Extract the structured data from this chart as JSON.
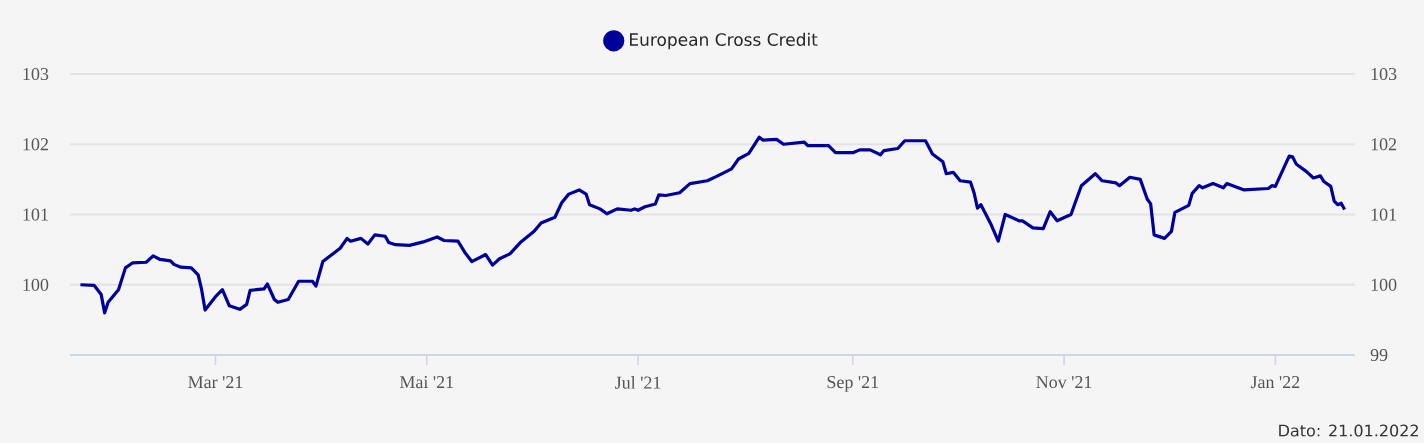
{
  "chart_data": {
    "type": "line",
    "legend": "top",
    "grid": "y",
    "annotations": [
      "Dato: 21.01.2022"
    ],
    "xlim": [
      "2021-01-18",
      "2022-01-24"
    ],
    "xticks": [
      {
        "value": "2021-03-01",
        "label": "Mar '21"
      },
      {
        "value": "2021-05-01",
        "label": "Mai '21"
      },
      {
        "value": "2021-07-01",
        "label": "Jul '21"
      },
      {
        "value": "2021-09-01",
        "label": "Sep '21"
      },
      {
        "value": "2021-11-01",
        "label": "Nov '21"
      },
      {
        "value": "2022-01-01",
        "label": "Jan '22"
      }
    ],
    "ylim": [
      99,
      103
    ],
    "yticks": [
      100,
      101,
      102,
      103
    ],
    "y2lim": [
      99,
      103
    ],
    "y2ticks": [
      99,
      100,
      101,
      102,
      103
    ],
    "series": [
      {
        "name": "European Cross Credit",
        "color": "#00009b",
        "x": [
          "2021-01-21",
          "2021-01-25",
          "2021-01-27",
          "2021-01-28",
          "2021-01-29",
          "2021-02-01",
          "2021-02-03",
          "2021-02-05",
          "2021-02-09",
          "2021-02-11",
          "2021-02-13",
          "2021-02-16",
          "2021-02-17",
          "2021-02-19",
          "2021-02-22",
          "2021-02-24",
          "2021-02-25",
          "2021-02-26",
          "2021-03-01",
          "2021-03-03",
          "2021-03-05",
          "2021-03-08",
          "2021-03-10",
          "2021-03-11",
          "2021-03-15",
          "2021-03-16",
          "2021-03-18",
          "2021-03-19",
          "2021-03-22",
          "2021-03-25",
          "2021-03-29",
          "2021-03-30",
          "2021-04-01",
          "2021-04-06",
          "2021-04-08",
          "2021-04-09",
          "2021-04-12",
          "2021-04-14",
          "2021-04-16",
          "2021-04-19",
          "2021-04-20",
          "2021-04-22",
          "2021-04-26",
          "2021-04-30",
          "2021-05-04",
          "2021-05-06",
          "2021-05-10",
          "2021-05-12",
          "2021-05-14",
          "2021-05-18",
          "2021-05-20",
          "2021-05-22",
          "2021-05-25",
          "2021-05-28",
          "2021-06-01",
          "2021-06-03",
          "2021-06-07",
          "2021-06-09",
          "2021-06-11",
          "2021-06-14",
          "2021-06-16",
          "2021-06-17",
          "2021-06-20",
          "2021-06-22",
          "2021-06-25",
          "2021-06-29",
          "2021-06-30",
          "2021-07-01",
          "2021-07-03",
          "2021-07-06",
          "2021-07-07",
          "2021-07-09",
          "2021-07-13",
          "2021-07-16",
          "2021-07-21",
          "2021-07-24",
          "2021-07-28",
          "2021-07-30",
          "2021-08-02",
          "2021-08-05",
          "2021-08-06",
          "2021-08-10",
          "2021-08-12",
          "2021-08-18",
          "2021-08-19",
          "2021-08-25",
          "2021-08-27",
          "2021-09-01",
          "2021-09-03",
          "2021-09-06",
          "2021-09-09",
          "2021-09-10",
          "2021-09-14",
          "2021-09-16",
          "2021-09-22",
          "2021-09-24",
          "2021-09-27",
          "2021-09-28",
          "2021-09-30",
          "2021-10-02",
          "2021-10-05",
          "2021-10-06",
          "2021-10-07",
          "2021-10-08",
          "2021-10-11",
          "2021-10-13",
          "2021-10-15",
          "2021-10-19",
          "2021-10-20",
          "2021-10-23",
          "2021-10-26",
          "2021-10-28",
          "2021-10-30",
          "2021-11-03",
          "2021-11-04",
          "2021-11-06",
          "2021-11-10",
          "2021-11-12",
          "2021-11-16",
          "2021-11-17",
          "2021-11-20",
          "2021-11-23",
          "2021-11-25",
          "2021-11-26",
          "2021-11-27",
          "2021-11-30",
          "2021-12-02",
          "2021-12-03",
          "2021-12-07",
          "2021-12-08",
          "2021-12-10",
          "2021-12-11",
          "2021-12-14",
          "2021-12-17",
          "2021-12-18",
          "2021-12-23",
          "2021-12-30",
          "2021-12-31",
          "2022-01-01",
          "2022-01-05",
          "2022-01-06",
          "2022-01-07",
          "2022-01-10",
          "2022-01-12",
          "2022-01-14",
          "2022-01-15",
          "2022-01-17",
          "2022-01-18",
          "2022-01-19",
          "2022-01-20",
          "2022-01-21"
        ],
        "values": [
          100.0,
          99.99,
          99.86,
          99.6,
          99.75,
          99.93,
          100.24,
          100.31,
          100.32,
          100.41,
          100.36,
          100.34,
          100.29,
          100.25,
          100.24,
          100.14,
          99.93,
          99.64,
          99.83,
          99.93,
          99.7,
          99.65,
          99.72,
          99.92,
          99.94,
          100.01,
          99.79,
          99.75,
          99.79,
          100.05,
          100.05,
          99.98,
          100.33,
          100.52,
          100.66,
          100.62,
          100.66,
          100.58,
          100.71,
          100.69,
          100.6,
          100.57,
          100.56,
          100.61,
          100.68,
          100.63,
          100.62,
          100.46,
          100.33,
          100.43,
          100.28,
          100.37,
          100.44,
          100.6,
          100.76,
          100.88,
          100.96,
          101.17,
          101.29,
          101.35,
          101.29,
          101.14,
          101.08,
          101.01,
          101.08,
          101.06,
          101.08,
          101.06,
          101.11,
          101.15,
          101.28,
          101.27,
          101.31,
          101.44,
          101.48,
          101.55,
          101.65,
          101.79,
          101.87,
          102.1,
          102.06,
          102.07,
          102.0,
          102.03,
          101.98,
          101.98,
          101.88,
          101.88,
          101.92,
          101.92,
          101.85,
          101.91,
          101.94,
          102.05,
          102.05,
          101.86,
          101.75,
          101.58,
          101.6,
          101.48,
          101.46,
          101.31,
          101.09,
          101.14,
          100.85,
          100.62,
          101.0,
          100.91,
          100.91,
          100.81,
          100.8,
          101.04,
          100.91,
          101.0,
          101.14,
          101.41,
          101.58,
          101.48,
          101.45,
          101.41,
          101.53,
          101.5,
          101.22,
          101.15,
          100.71,
          100.66,
          100.76,
          101.03,
          101.13,
          101.3,
          101.41,
          101.38,
          101.44,
          101.38,
          101.44,
          101.35,
          101.37,
          101.41,
          101.4,
          101.83,
          101.82,
          101.72,
          101.61,
          101.52,
          101.55,
          101.47,
          101.4,
          101.19,
          101.14,
          101.16,
          101.07
        ]
      }
    ]
  }
}
